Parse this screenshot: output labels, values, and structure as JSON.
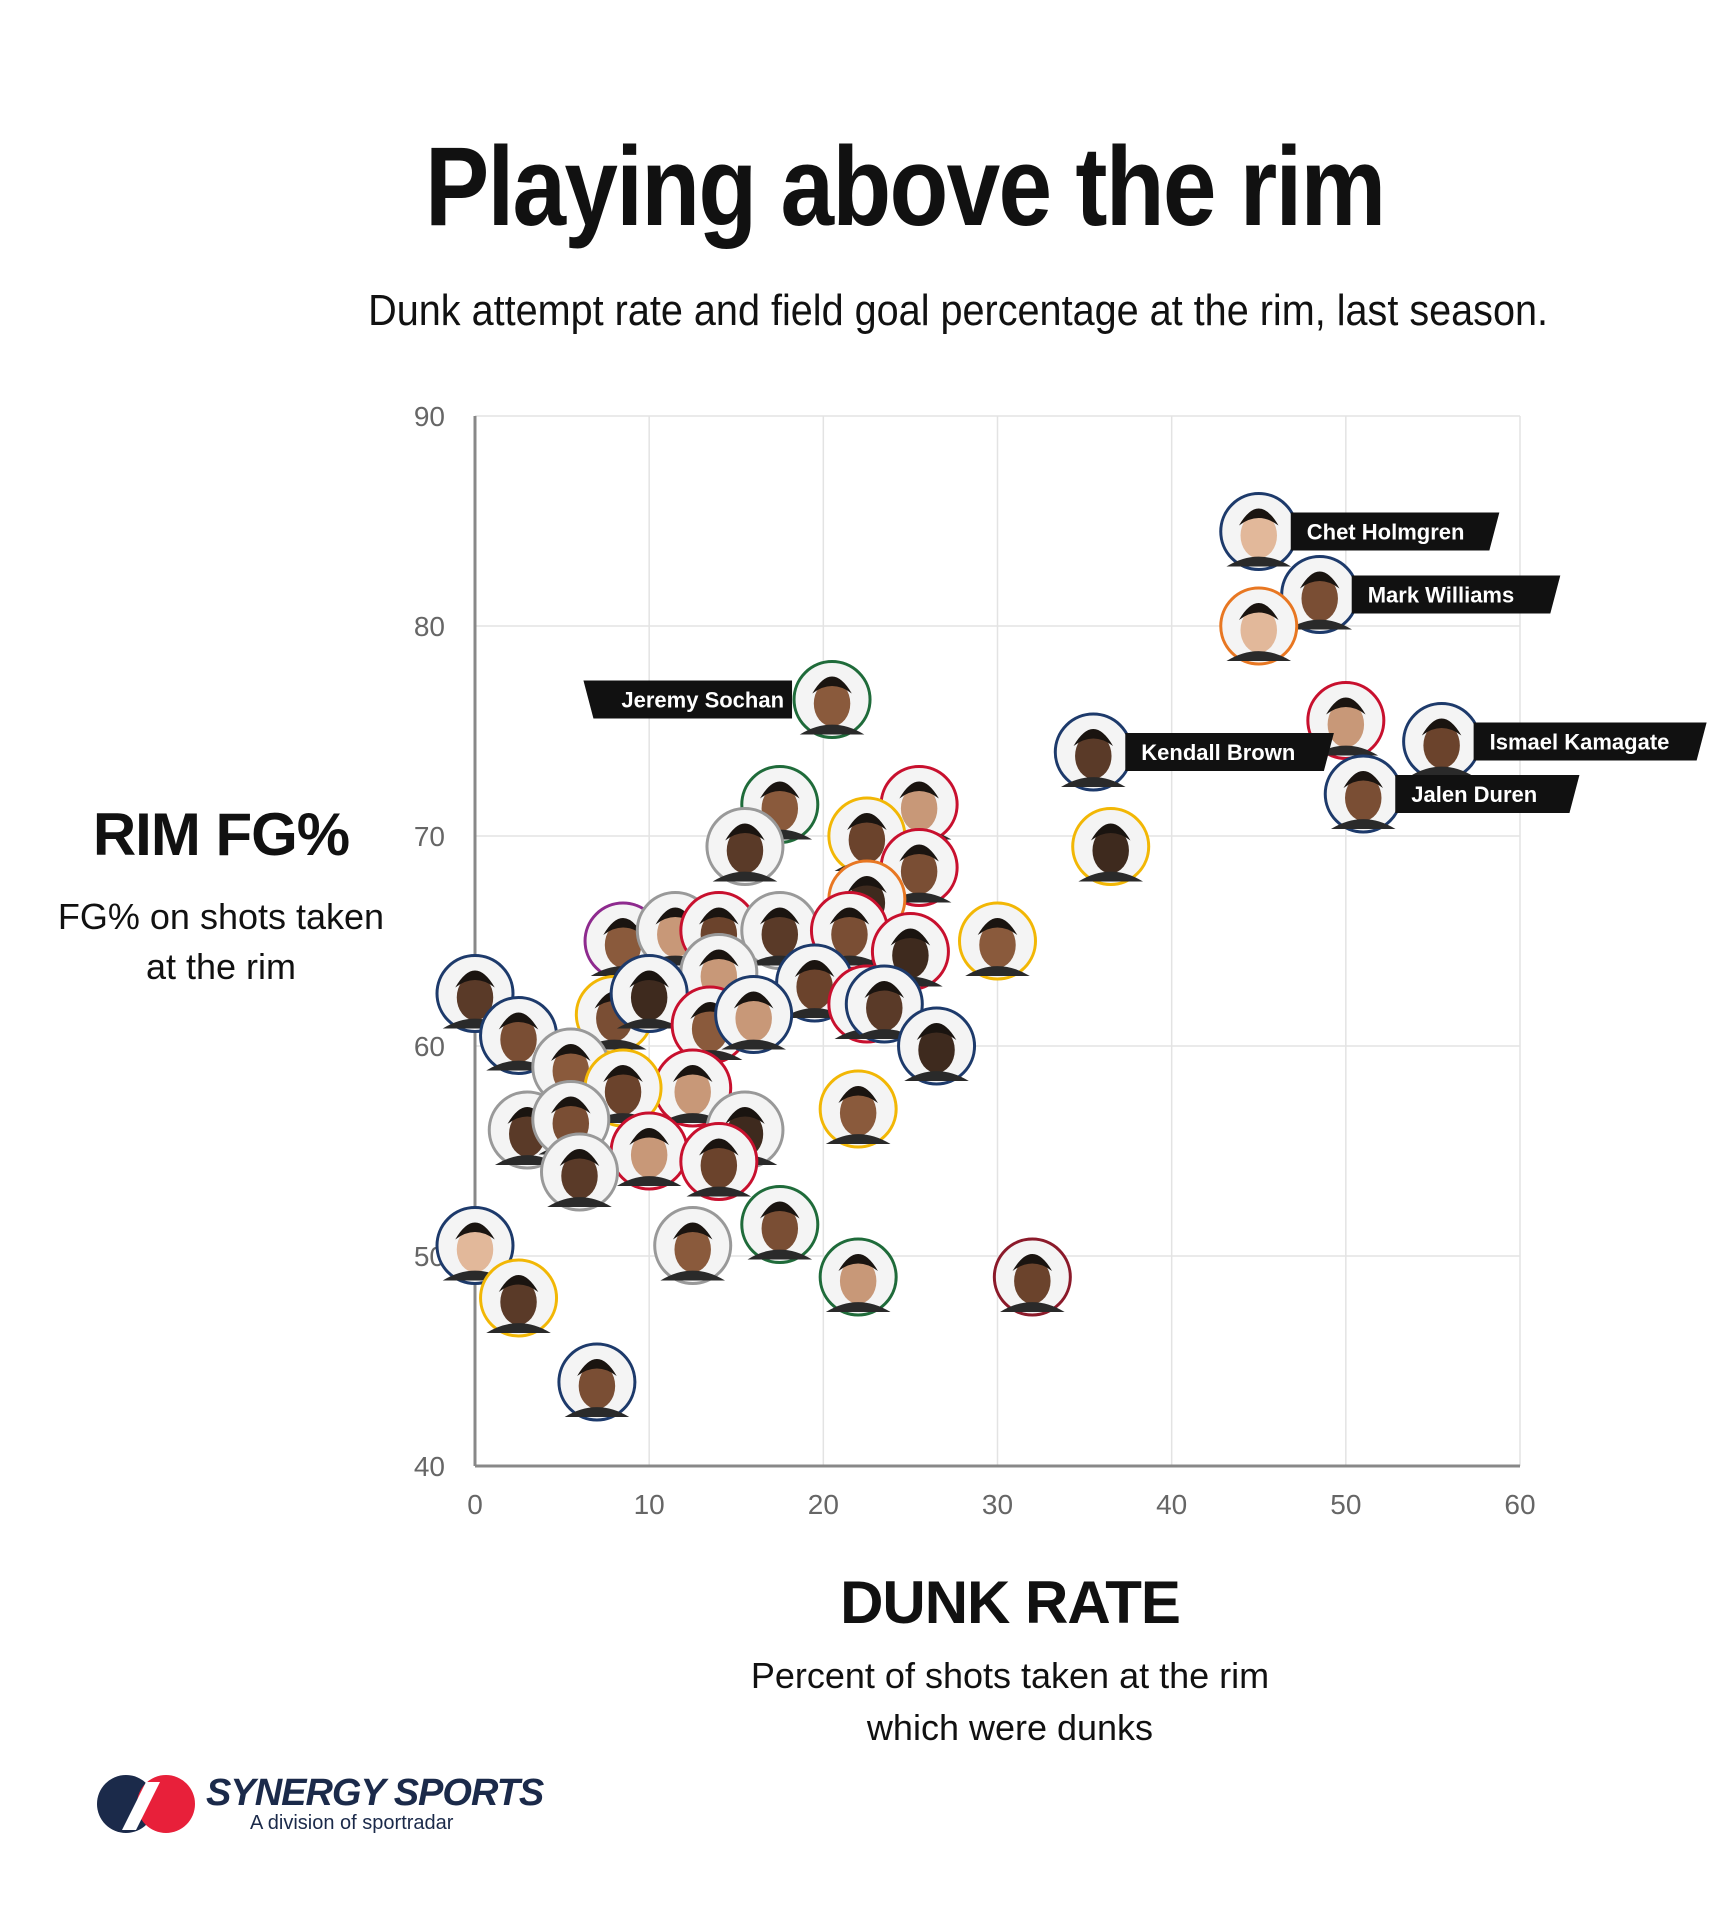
{
  "title": "Playing above the rim",
  "subtitle": "Dunk attempt rate and field goal percentage at the rim, last season.",
  "y_axis": {
    "title": "RIM FG%",
    "subtitle": "FG% on shots taken at the rim"
  },
  "x_axis": {
    "title": "DUNK RATE",
    "subtitle": "Percent of shots taken at the rim which were dunks"
  },
  "logo": {
    "name": "SYNERGY SPORTS",
    "tagline": "A division of sportradar"
  },
  "chart_data": {
    "type": "scatter",
    "title": "Playing above the rim",
    "xlabel": "DUNK RATE",
    "ylabel": "RIM FG%",
    "xlim": [
      0,
      60
    ],
    "ylim": [
      40,
      90
    ],
    "x_ticks": [
      0,
      10,
      20,
      30,
      40,
      50,
      60
    ],
    "y_ticks": [
      40,
      50,
      60,
      70,
      80,
      90
    ],
    "grid": true,
    "points": [
      {
        "x": 45,
        "y": 84.5,
        "label": "Chet Holmgren",
        "ring": "#1d3a6b"
      },
      {
        "x": 48.5,
        "y": 81.5,
        "label": "Mark Williams",
        "ring": "#1d3a6b"
      },
      {
        "x": 45,
        "y": 80,
        "ring": "#e87722"
      },
      {
        "x": 20.5,
        "y": 76.5,
        "label": "Jeremy Sochan",
        "ring": "#1f6b3a"
      },
      {
        "x": 50,
        "y": 75.5,
        "ring": "#c8102e"
      },
      {
        "x": 55.5,
        "y": 74.5,
        "label": "Ismael Kamagate",
        "ring": "#1d3a6b"
      },
      {
        "x": 35.5,
        "y": 74,
        "label": "Kendall Brown",
        "ring": "#1d3a6b"
      },
      {
        "x": 51,
        "y": 72,
        "label": "Jalen Duren",
        "ring": "#1d3a6b"
      },
      {
        "x": 36.5,
        "y": 69.5,
        "ring": "#f2b705"
      },
      {
        "x": 17.5,
        "y": 71.5,
        "ring": "#1f6b3a"
      },
      {
        "x": 25.5,
        "y": 71.5,
        "ring": "#c8102e"
      },
      {
        "x": 22.5,
        "y": 70,
        "ring": "#f2b705"
      },
      {
        "x": 15.5,
        "y": 69.5,
        "ring": "#999999"
      },
      {
        "x": 25.5,
        "y": 68.5,
        "ring": "#c8102e"
      },
      {
        "x": 22.5,
        "y": 67,
        "ring": "#e87722"
      },
      {
        "x": 8.5,
        "y": 65,
        "ring": "#8e2a8e"
      },
      {
        "x": 11.5,
        "y": 65.5,
        "ring": "#999999"
      },
      {
        "x": 14,
        "y": 65.5,
        "ring": "#c8102e"
      },
      {
        "x": 17.5,
        "y": 65.5,
        "ring": "#999999"
      },
      {
        "x": 21.5,
        "y": 65.5,
        "ring": "#c8102e"
      },
      {
        "x": 25,
        "y": 64.5,
        "ring": "#c8102e"
      },
      {
        "x": 30,
        "y": 65,
        "ring": "#f2b705"
      },
      {
        "x": 14,
        "y": 63.5,
        "ring": "#999999"
      },
      {
        "x": 19.5,
        "y": 63,
        "ring": "#1d3a6b"
      },
      {
        "x": 0,
        "y": 62.5,
        "ring": "#1d3a6b"
      },
      {
        "x": 8,
        "y": 61.5,
        "ring": "#f2b705"
      },
      {
        "x": 10,
        "y": 62.5,
        "ring": "#1d3a6b"
      },
      {
        "x": 13.5,
        "y": 61,
        "ring": "#c8102e"
      },
      {
        "x": 16,
        "y": 61.5,
        "ring": "#1d3a6b"
      },
      {
        "x": 22.5,
        "y": 62,
        "ring": "#c8102e"
      },
      {
        "x": 23.5,
        "y": 62,
        "ring": "#1d3a6b"
      },
      {
        "x": 2.5,
        "y": 60.5,
        "ring": "#1d3a6b"
      },
      {
        "x": 26.5,
        "y": 60,
        "ring": "#1d3a6b"
      },
      {
        "x": 5.5,
        "y": 59,
        "ring": "#999999"
      },
      {
        "x": 12.5,
        "y": 58,
        "ring": "#c8102e"
      },
      {
        "x": 8.5,
        "y": 58,
        "ring": "#f2b705"
      },
      {
        "x": 3,
        "y": 56,
        "ring": "#999999"
      },
      {
        "x": 5.5,
        "y": 56.5,
        "ring": "#999999"
      },
      {
        "x": 15.5,
        "y": 56,
        "ring": "#999999"
      },
      {
        "x": 22,
        "y": 57,
        "ring": "#f2b705"
      },
      {
        "x": 10,
        "y": 55,
        "ring": "#c8102e"
      },
      {
        "x": 14,
        "y": 54.5,
        "ring": "#c8102e"
      },
      {
        "x": 6,
        "y": 54,
        "ring": "#999999"
      },
      {
        "x": 17.5,
        "y": 51.5,
        "ring": "#1f6b3a"
      },
      {
        "x": 0,
        "y": 50.5,
        "ring": "#1d3a6b"
      },
      {
        "x": 12.5,
        "y": 50.5,
        "ring": "#999999"
      },
      {
        "x": 22,
        "y": 49,
        "ring": "#1f6b3a"
      },
      {
        "x": 32,
        "y": 49,
        "ring": "#8b1a2a"
      },
      {
        "x": 2.5,
        "y": 48,
        "ring": "#f2b705"
      },
      {
        "x": 7,
        "y": 44,
        "ring": "#1d3a6b"
      }
    ]
  }
}
